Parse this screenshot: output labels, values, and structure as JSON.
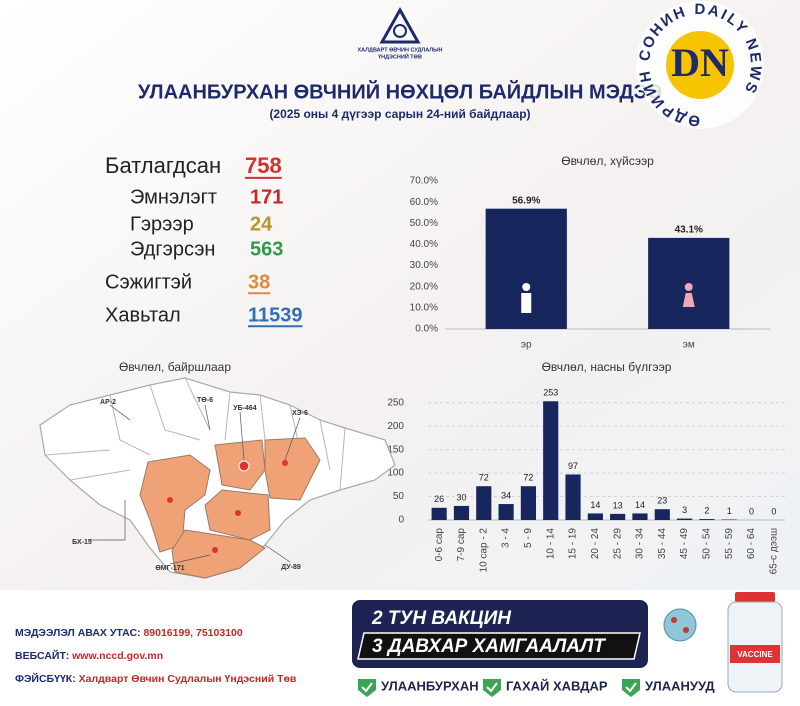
{
  "header": {
    "org": [
      "ХАЛДВАРТ ӨВЧИН СУДЛАЛЫН",
      "ҮНДЭСНИЙ ТӨВ"
    ],
    "title": "УЛААНБУРХАН ӨВЧНИЙ НӨХЦӨЛ БАЙДЛЫН МЭДЭЭ",
    "subtitle": "(2025 оны 4 дүгээр сарын 24-ний байдлаар)"
  },
  "watermark": {
    "logo": "DN",
    "ring": "ӨДРИЙН СОНИН DAILY NEWS"
  },
  "stats": [
    {
      "label": "Батлагдсан",
      "value": 758,
      "color": "#d32f2f"
    },
    {
      "label": "Эмнэлэгт",
      "value": 171,
      "color": "#c62828"
    },
    {
      "label": "Гэрээр",
      "value": 24,
      "color": "#b8962e"
    },
    {
      "label": "Эдгэрсэн",
      "value": 563,
      "color": "#2e9b48"
    },
    {
      "label": "Сэжигтэй",
      "value": 38,
      "color": "#e08a3c"
    },
    {
      "label": "Хавьтал",
      "value": 11539,
      "color": "#2f6fb5"
    }
  ],
  "chart_data": [
    {
      "type": "bar",
      "title": "Өвчлөл, хүйсээр",
      "categories": [
        "эр",
        "эм"
      ],
      "values": [
        56.9,
        43.1
      ],
      "value_labels": [
        "56.9%",
        "43.1%"
      ],
      "color": "#17275e",
      "ylim": [
        0,
        70
      ],
      "yticks": [
        {
          "value": 0,
          "label": "0.0%"
        },
        {
          "value": 10,
          "label": "10.0%"
        },
        {
          "value": 20,
          "label": "20.0%"
        },
        {
          "value": 30,
          "label": "30.0%"
        },
        {
          "value": 40,
          "label": "40.0%"
        },
        {
          "value": 50,
          "label": "50.0%"
        },
        {
          "value": 60,
          "label": "60.0%"
        },
        {
          "value": 70,
          "label": "70.0%"
        }
      ],
      "grid": false
    },
    {
      "type": "bar",
      "title": "Өвчлөл, насны бүлгээр",
      "categories": [
        "0-6 сар",
        "7-9 сар",
        "10 сар - 2",
        "3 - 4",
        "5 - 9",
        "10 - 14",
        "15 - 19",
        "20 - 24",
        "25 - 29",
        "30 - 34",
        "35 - 44",
        "45 - 49",
        "50 - 54",
        "55 - 59",
        "60 - 64",
        "65-с дээш"
      ],
      "values": [
        26,
        30,
        72,
        34,
        72,
        253,
        97,
        14,
        13,
        14,
        23,
        3,
        2,
        1,
        0,
        0
      ],
      "color": "#17275e",
      "ylim": [
        0,
        260
      ],
      "yticks": [
        0,
        50,
        100,
        150,
        200,
        250
      ],
      "grid": true
    }
  ],
  "map": {
    "title": "Өвчлөл, байршлаар",
    "labels": [
      "АР-2",
      "ТӨ-6",
      "УБ-464",
      "ХЭ-6",
      "БХ-15",
      "ӨМГ-171",
      "ДУ-89"
    ]
  },
  "footer": {
    "phone": {
      "label": "МЭДЭЭЛЭЛ АВАХ УТАС:",
      "value": "89016199,  75103100"
    },
    "website": {
      "label": "ВЕБСАЙТ:",
      "value": "www.nccd.gov.mn"
    },
    "facebook": {
      "label": "ФЭЙСБҮҮК:",
      "value": "Халдварт Өвчин Судлалын Үндэсний Төв"
    }
  },
  "banner": {
    "line1": "2 ТУН ВАКЦИН",
    "line2": "3 ДАВХАР ХАМГААЛАЛТ",
    "items": [
      "УЛААНБУРХАН",
      "ГАХАЙ ХАВДАР",
      "УЛААНУУД"
    ],
    "bottle": "VACCINE"
  }
}
